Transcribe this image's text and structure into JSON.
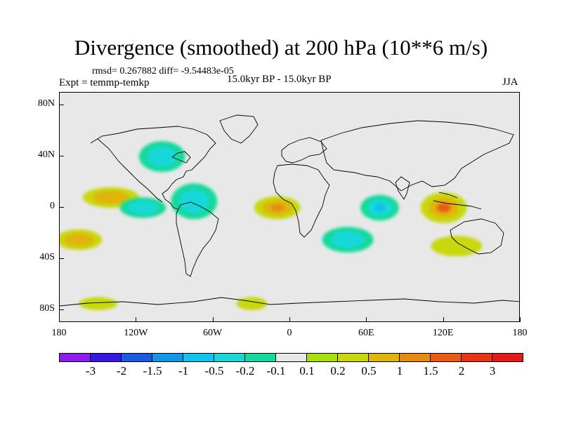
{
  "title": "Divergence (smoothed) at 200 hPa (10**6 m/s)",
  "stats": "rmsd= 0.267882 diff= -9.54483e-05",
  "expt": "Expt = temmp-temkp",
  "period": "15.0kyr BP - 15.0kyr BP",
  "season": "JJA",
  "chart_data": {
    "type": "map",
    "projection": "cylindrical-equidistant",
    "xlim": [
      -180,
      180
    ],
    "ylim": [
      -90,
      90
    ],
    "lat_ticks": [
      {
        "value": 80,
        "label": "80N"
      },
      {
        "value": 40,
        "label": "40N"
      },
      {
        "value": 0,
        "label": "0"
      },
      {
        "value": -40,
        "label": "40S"
      },
      {
        "value": -80,
        "label": "80S"
      }
    ],
    "lon_ticks": [
      {
        "value": -180,
        "label": "180"
      },
      {
        "value": -120,
        "label": "120W"
      },
      {
        "value": -60,
        "label": "60W"
      },
      {
        "value": 0,
        "label": "0"
      },
      {
        "value": 60,
        "label": "60E"
      },
      {
        "value": 120,
        "label": "120E"
      },
      {
        "value": 180,
        "label": "180"
      }
    ],
    "contour_levels": [
      -3,
      -2,
      -1.5,
      -1,
      -0.5,
      -0.2,
      -0.1,
      0.1,
      0.2,
      0.5,
      1,
      1.5,
      2,
      3
    ],
    "colors": [
      "#8d1cf0",
      "#3618e6",
      "#1c5ae6",
      "#0e99e8",
      "#11c1ee",
      "#16d8d8",
      "#14d99c",
      "#e8e8e8",
      "#a6e10d",
      "#c8d80c",
      "#e0b40c",
      "#e78a0e",
      "#eb5a12",
      "#e83316",
      "#e41a16"
    ],
    "colorbar_labels": [
      "-3",
      "-2",
      "-1.5",
      "-1",
      "-0.5",
      "-0.2",
      "-0.1",
      "0.1",
      "0.2",
      "0.5",
      "1",
      "1.5",
      "2",
      "3"
    ],
    "features": [
      {
        "name": "east-pacific-positive",
        "lon": -140,
        "lat": 8,
        "rx": 22,
        "ry": 8,
        "value": 0.5
      },
      {
        "name": "central-pacific-negative",
        "lon": -115,
        "lat": 0,
        "rx": 18,
        "ry": 8,
        "value": -0.5
      },
      {
        "name": "central-america-negative",
        "lon": -75,
        "lat": 5,
        "rx": 18,
        "ry": 14,
        "value": -0.5
      },
      {
        "name": "tropical-atlantic-positive",
        "lon": -10,
        "lat": 0,
        "rx": 18,
        "ry": 9,
        "value": 1
      },
      {
        "name": "north-america-negative",
        "lon": -100,
        "lat": 40,
        "rx": 18,
        "ry": 12,
        "value": -0.5
      },
      {
        "name": "indian-ocean-negative",
        "lon": 70,
        "lat": 0,
        "rx": 15,
        "ry": 10,
        "value": -1
      },
      {
        "name": "maritime-continent-positive",
        "lon": 120,
        "lat": 0,
        "rx": 18,
        "ry": 12,
        "value": 1.5
      },
      {
        "name": "south-pacific-positive",
        "lon": -165,
        "lat": -25,
        "rx": 18,
        "ry": 8,
        "value": 0.5
      },
      {
        "name": "south-indian-negative",
        "lon": 45,
        "lat": -25,
        "rx": 20,
        "ry": 10,
        "value": -0.5
      },
      {
        "name": "australia-positive",
        "lon": 130,
        "lat": -30,
        "rx": 20,
        "ry": 8,
        "value": 0.2
      },
      {
        "name": "antarctic-positive-pacific",
        "lon": -150,
        "lat": -75,
        "rx": 15,
        "ry": 5,
        "value": 0.2
      },
      {
        "name": "antarctic-positive-atlantic",
        "lon": -30,
        "lat": -75,
        "rx": 12,
        "ry": 5,
        "value": 0.2
      }
    ]
  }
}
